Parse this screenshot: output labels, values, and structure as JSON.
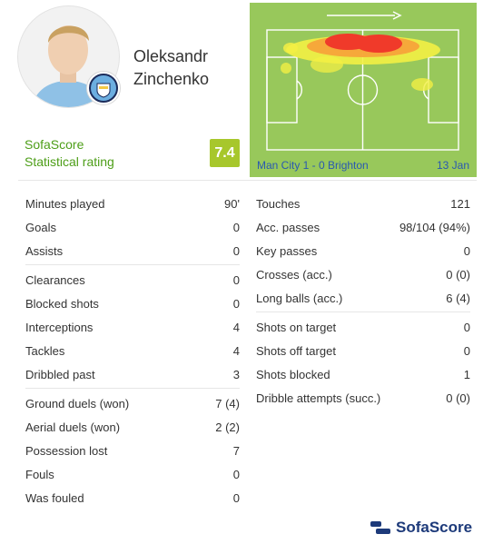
{
  "player": {
    "name_line1": "Oleksandr",
    "name_line2": "Zinchenko",
    "club_badge_icon": "man-city-crest-icon"
  },
  "rating": {
    "label_line1": "SofaScore",
    "label_line2": "Statistical rating",
    "value": "7.4",
    "color": "#a7c72c"
  },
  "heatmap": {
    "direction_icon": "arrow-right-icon",
    "match": "Man City 1 - 0 Brighton",
    "date": "13 Jan",
    "pitch_color": "#98c85b"
  },
  "left_stats": [
    [
      {
        "label": "Minutes played",
        "value": "90'"
      },
      {
        "label": "Goals",
        "value": "0"
      },
      {
        "label": "Assists",
        "value": "0"
      }
    ],
    [
      {
        "label": "Clearances",
        "value": "0"
      },
      {
        "label": "Blocked shots",
        "value": "0"
      },
      {
        "label": "Interceptions",
        "value": "4"
      },
      {
        "label": "Tackles",
        "value": "4"
      },
      {
        "label": "Dribbled past",
        "value": "3"
      }
    ],
    [
      {
        "label": "Ground duels (won)",
        "value": "7 (4)"
      },
      {
        "label": "Aerial duels (won)",
        "value": "2 (2)"
      },
      {
        "label": "Possession lost",
        "value": "7"
      },
      {
        "label": "Fouls",
        "value": "0"
      },
      {
        "label": "Was fouled",
        "value": "0"
      }
    ]
  ],
  "right_stats": [
    [
      {
        "label": "Touches",
        "value": "121"
      },
      {
        "label": "Acc. passes",
        "value": "98/104 (94%)"
      },
      {
        "label": "Key passes",
        "value": "0"
      },
      {
        "label": "Crosses (acc.)",
        "value": "0 (0)"
      },
      {
        "label": "Long balls (acc.)",
        "value": "6 (4)"
      }
    ],
    [
      {
        "label": "Shots on target",
        "value": "0"
      },
      {
        "label": "Shots off target",
        "value": "0"
      },
      {
        "label": "Shots blocked",
        "value": "1"
      },
      {
        "label": "Dribble attempts (succ.)",
        "value": "0 (0)"
      }
    ]
  ],
  "footer": {
    "brand": "SofaScore",
    "brand_icon": "sofascore-logo-icon"
  }
}
